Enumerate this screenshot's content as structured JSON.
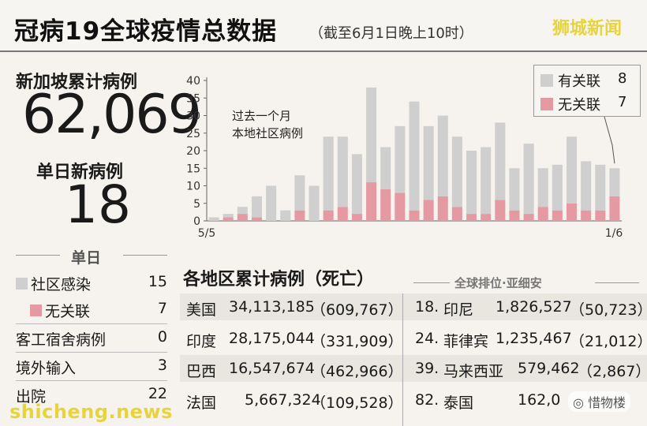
{
  "header": {
    "title": "冠病19全球疫情总数据",
    "subtitle": "（截至6月1日晚上10时）",
    "brand": "狮城新闻"
  },
  "left": {
    "total_label": "新加坡累计病例",
    "total_value": "62,069",
    "daily_label": "单日新病例",
    "daily_value": "18",
    "day_heading": "单日",
    "rows": [
      {
        "label": "社区感染",
        "value": "15",
        "swatch": "grey"
      },
      {
        "label": "无关联",
        "value": "7",
        "swatch": "pink"
      },
      {
        "label": "客工宿舍病例",
        "value": "0"
      },
      {
        "label": "境外输入",
        "value": "3"
      },
      {
        "label": "出院",
        "value": "22"
      }
    ]
  },
  "chart_data": {
    "type": "bar",
    "stacked": true,
    "note_lines": [
      "过去一个月",
      "本地社区病例"
    ],
    "x_start_label": "5/5",
    "x_end_label": "1/6",
    "ylim": [
      0,
      40
    ],
    "yticks": [
      0,
      5,
      10,
      15,
      20,
      25,
      30,
      35,
      40
    ],
    "grid": false,
    "legend_position": "top-right",
    "series": [
      {
        "name": "有关联",
        "color": "#cfcfcf",
        "values": [
          1,
          1,
          2,
          6,
          10,
          3,
          10,
          10,
          21,
          20,
          17,
          27,
          12,
          19,
          31,
          21,
          23,
          20,
          18,
          19,
          22,
          12,
          20,
          11,
          13,
          19,
          14,
          13,
          8
        ]
      },
      {
        "name": "无关联",
        "color": "#e59aa3",
        "values": [
          0,
          1,
          2,
          1,
          0,
          0,
          3,
          0,
          3,
          4,
          2,
          11,
          9,
          8,
          3,
          6,
          7,
          4,
          2,
          2,
          6,
          3,
          2,
          4,
          3,
          5,
          3,
          3,
          7
        ]
      }
    ],
    "legend": [
      {
        "name": "有关联",
        "value": "8",
        "color": "#cfcfcf"
      },
      {
        "name": "无关联",
        "value": "7",
        "color": "#e59aa3"
      }
    ]
  },
  "regions": {
    "title": "各地区累计病例（死亡）",
    "rank_title": "全球排位·亚细安",
    "left_rows": [
      {
        "name": "美国",
        "cases": "34,113,185",
        "deaths": "（609,767）"
      },
      {
        "name": "印度",
        "cases": "28,175,044",
        "deaths": "（331,909）"
      },
      {
        "name": "巴西",
        "cases": "16,547,674",
        "deaths": "（462,966）"
      },
      {
        "name": "法国",
        "cases": "5,667,324",
        "deaths": "（109,528）"
      }
    ],
    "right_rows": [
      {
        "rank": "18.",
        "name": "印尼",
        "cases": "1,826,527",
        "deaths": "（50,723）"
      },
      {
        "rank": "24.",
        "name": "菲律宾",
        "cases": "1,235,467",
        "deaths": "（21,012）"
      },
      {
        "rank": "39.",
        "name": "马来西亚",
        "cases": "579,462",
        "deaths": "（2,867）"
      },
      {
        "rank": "82.",
        "name": "泰国",
        "cases": "162,0",
        "deaths": ""
      }
    ]
  },
  "watermark": {
    "site": "shicheng.news",
    "badge": "惜物楼"
  }
}
